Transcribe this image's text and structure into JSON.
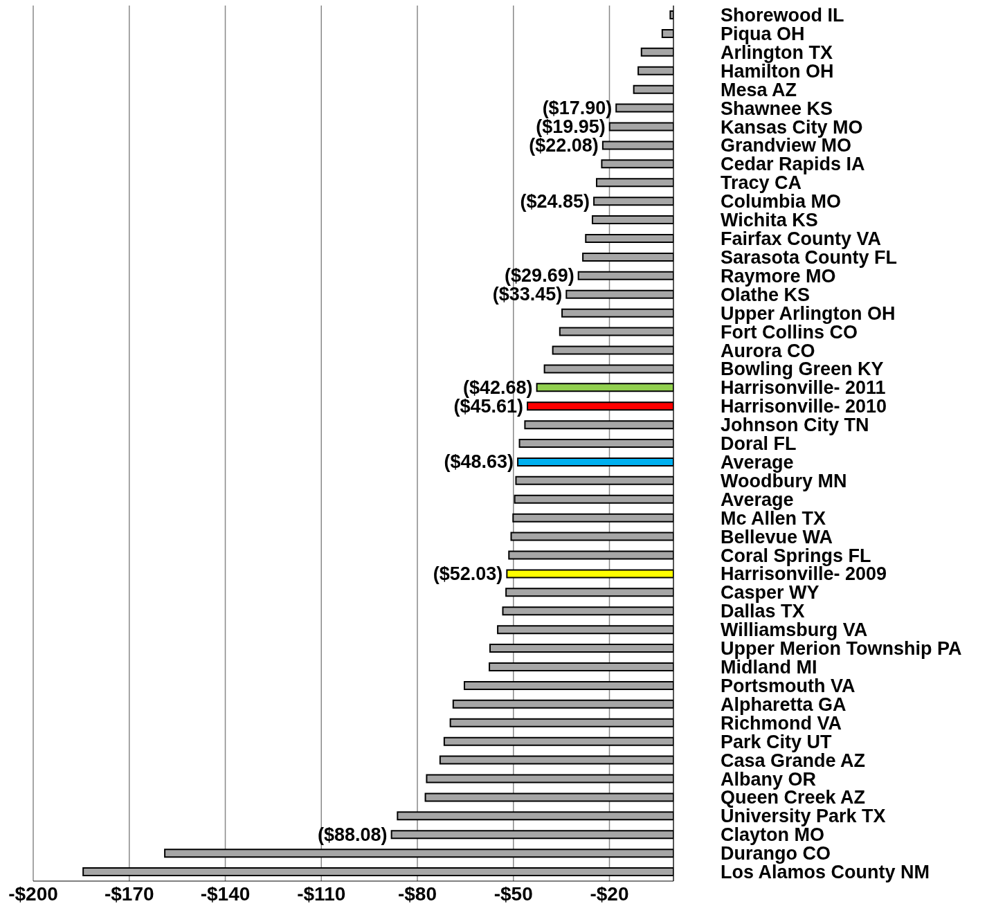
{
  "chart_data": {
    "type": "bar",
    "orientation": "horizontal",
    "categories": [
      "Shorewood IL",
      "Piqua OH",
      "Arlington TX",
      "Hamilton OH",
      "Mesa AZ",
      "Shawnee KS",
      "Kansas City MO",
      "Grandview MO",
      "Cedar Rapids IA",
      "Tracy CA",
      "Columbia MO",
      "Wichita KS",
      "Fairfax County VA",
      "Sarasota County FL",
      "Raymore MO",
      "Olathe KS",
      "Upper Arlington OH",
      "Fort Collins CO",
      "Aurora CO",
      "Bowling Green KY",
      "Harrisonville- 2011",
      "Harrisonville- 2010",
      "Johnson City TN",
      "Doral FL",
      "Average",
      "Woodbury MN",
      "Average",
      "Mc Allen TX",
      "Bellevue WA",
      "Coral Springs FL",
      "Harrisonville- 2009",
      "Casper WY",
      "Dallas TX",
      "Williamsburg VA",
      "Upper Merion Township PA",
      "Midland MI",
      "Portsmouth VA",
      "Alpharetta GA",
      "Richmond VA",
      "Park City UT",
      "Casa Grande AZ",
      "Albany OR",
      "Queen Creek AZ",
      "University Park TX",
      "Clayton MO",
      "Durango CO",
      "Los Alamos County NM"
    ],
    "values": [
      -1,
      -3.5,
      -10,
      -11,
      -12.4,
      -17.9,
      -19.95,
      -22.08,
      -22.4,
      -24,
      -24.85,
      -25.3,
      -27.4,
      -28.3,
      -29.69,
      -33.45,
      -34.8,
      -35.5,
      -37.7,
      -40.3,
      -42.68,
      -45.61,
      -46.4,
      -48.1,
      -48.63,
      -49.2,
      -49.6,
      -50.1,
      -50.7,
      -51.4,
      -52.03,
      -52.3,
      -53.3,
      -54.9,
      -57.3,
      -57.5,
      -65.3,
      -68.8,
      -69.7,
      -71.6,
      -72.9,
      -77.1,
      -77.5,
      -86.2,
      -88.08,
      -158.9,
      -184.4
    ],
    "colors": [
      "#a6a6a6",
      "#a6a6a6",
      "#a6a6a6",
      "#a6a6a6",
      "#a6a6a6",
      "#a6a6a6",
      "#a6a6a6",
      "#a6a6a6",
      "#a6a6a6",
      "#a6a6a6",
      "#a6a6a6",
      "#a6a6a6",
      "#a6a6a6",
      "#a6a6a6",
      "#a6a6a6",
      "#a6a6a6",
      "#a6a6a6",
      "#a6a6a6",
      "#a6a6a6",
      "#a6a6a6",
      "#92d050",
      "#ff0000",
      "#a6a6a6",
      "#a6a6a6",
      "#00b0f0",
      "#a6a6a6",
      "#a6a6a6",
      "#a6a6a6",
      "#a6a6a6",
      "#a6a6a6",
      "#ffff00",
      "#a6a6a6",
      "#a6a6a6",
      "#a6a6a6",
      "#a6a6a6",
      "#a6a6a6",
      "#a6a6a6",
      "#a6a6a6",
      "#a6a6a6",
      "#a6a6a6",
      "#a6a6a6",
      "#a6a6a6",
      "#a6a6a6",
      "#a6a6a6",
      "#a6a6a6",
      "#a6a6a6",
      "#a6a6a6"
    ],
    "value_labels": [
      null,
      null,
      null,
      null,
      null,
      "($17.90)",
      "($19.95)",
      "($22.08)",
      null,
      null,
      "($24.85)",
      null,
      null,
      null,
      "($29.69)",
      "($33.45)",
      null,
      null,
      null,
      null,
      "($42.68)",
      "($45.61)",
      null,
      null,
      "($48.63)",
      null,
      null,
      null,
      null,
      null,
      "($52.03)",
      null,
      null,
      null,
      null,
      null,
      null,
      null,
      null,
      null,
      null,
      null,
      null,
      null,
      "($88.08)",
      null,
      null
    ],
    "xlim": [
      -200,
      0
    ],
    "xticks": [
      {
        "value": -200,
        "label": "-$200"
      },
      {
        "value": -170,
        "label": "-$170"
      },
      {
        "value": -140,
        "label": "-$140"
      },
      {
        "value": -110,
        "label": "-$110"
      },
      {
        "value": -80,
        "label": "-$80"
      },
      {
        "value": -50,
        "label": "-$50"
      },
      {
        "value": -20,
        "label": "-$20"
      }
    ],
    "grid": "x"
  }
}
